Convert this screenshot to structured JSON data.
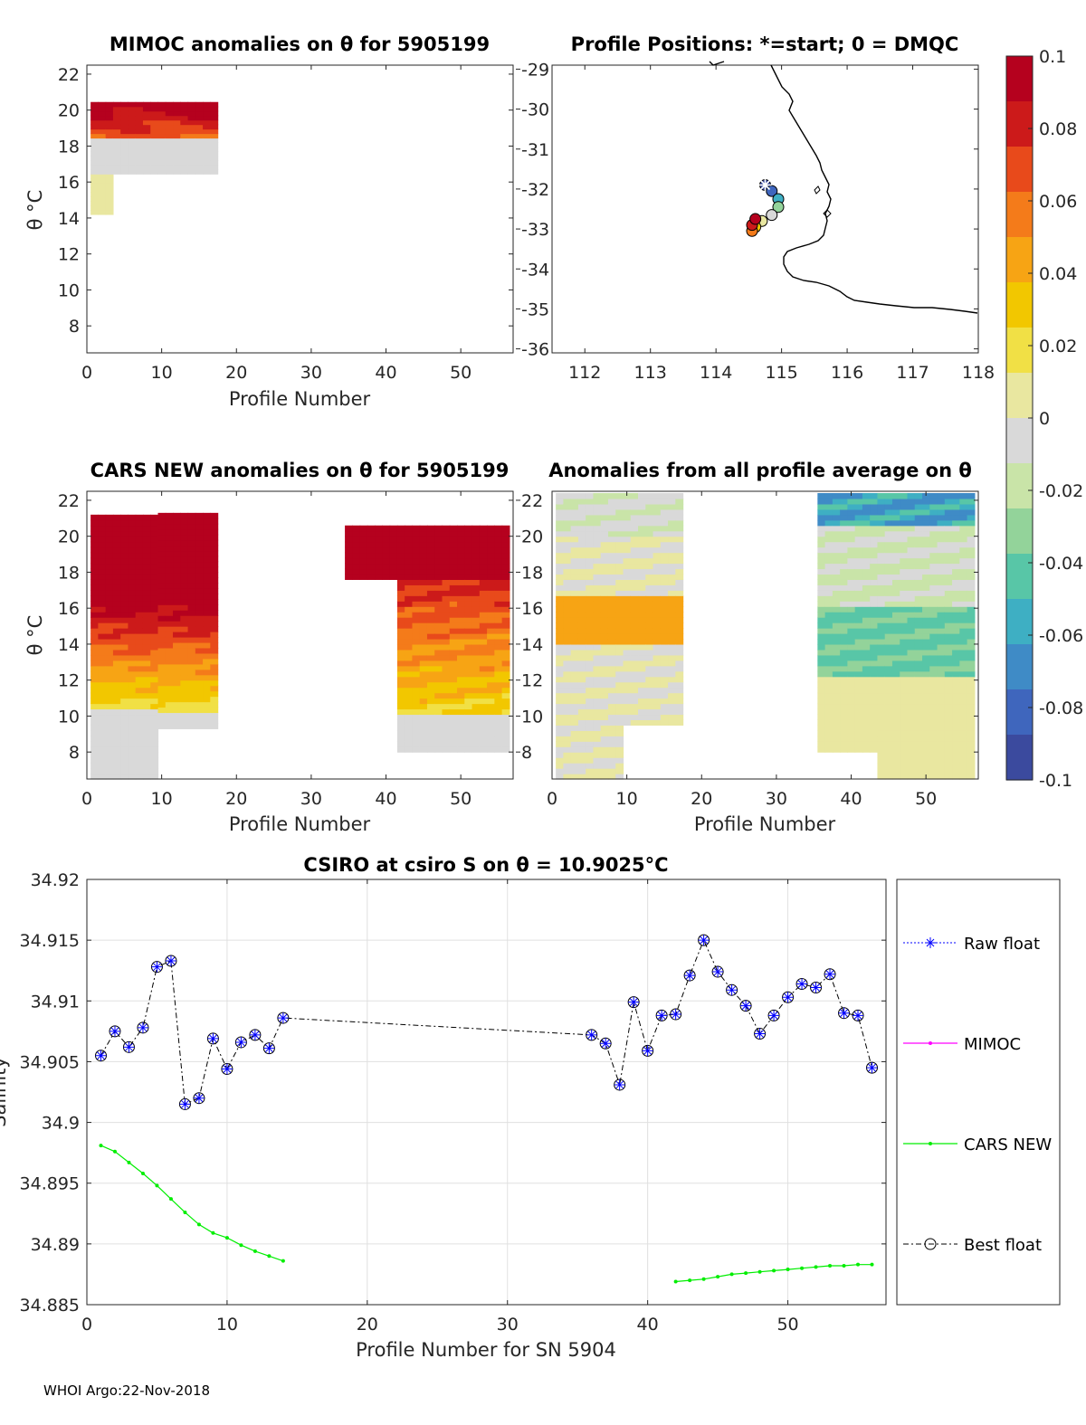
{
  "panels": {
    "mimoc": {
      "title": "MIMOC anomalies on θ  for 5905199",
      "ylabel": "θ °C",
      "xlabel": "Profile Number",
      "xticks": [
        "0",
        "10",
        "20",
        "30",
        "40",
        "50"
      ],
      "yticks": [
        "8",
        "10",
        "12",
        "14",
        "16",
        "18",
        "20",
        "22"
      ]
    },
    "map": {
      "title": "Profile Positions: *=start; 0 = DMQC",
      "xticks": [
        "112",
        "113",
        "114",
        "115",
        "116",
        "117",
        "118"
      ],
      "yticks": [
        "-29",
        "-30",
        "-31",
        "-32",
        "-33",
        "-34",
        "-35",
        "-36"
      ]
    },
    "cars": {
      "title": "CARS NEW anomalies on θ for 5905199",
      "ylabel": "θ °C",
      "xlabel": "Profile Number",
      "xticks": [
        "0",
        "10",
        "20",
        "30",
        "40",
        "50"
      ],
      "yticks": [
        "8",
        "10",
        "12",
        "14",
        "16",
        "18",
        "20",
        "22"
      ]
    },
    "allavg": {
      "title": "Anomalies from all profile average on θ",
      "xlabel": "Profile Number",
      "xticks": [
        "0",
        "10",
        "20",
        "30",
        "40",
        "50"
      ],
      "yticks": [
        "8",
        "10",
        "12",
        "14",
        "16",
        "18",
        "20",
        "22"
      ]
    },
    "colorbar": {
      "ticks": [
        "0.1",
        "0.08",
        "0.06",
        "0.04",
        "0.02",
        "0",
        "-0.02",
        "-0.04",
        "-0.06",
        "-0.08",
        "-0.1"
      ]
    }
  },
  "chart_data": [
    {
      "type": "heatmap",
      "title": "MIMOC anomalies on θ  for 5905199",
      "xlabel": "Profile Number",
      "ylabel": "θ °C",
      "xlim": [
        0,
        57
      ],
      "ylim": [
        6.5,
        22.5
      ],
      "color_range": [
        -0.1,
        0.1
      ],
      "description_of_field": "Warm anomalies (~0.06–0.1) above θ≈18.5 for profiles 1–17; near-zero to slightly negative (~-0.01) between θ 16.5–18; near-zero for profiles 1–3 down to θ≈14.3"
    },
    {
      "type": "scatter",
      "title": "Profile Positions: *=start; 0 = DMQC",
      "xlim": [
        111.5,
        118
      ],
      "ylim": [
        -36.1,
        -28.9
      ],
      "start": {
        "lon": 114.75,
        "lat": -31.9
      },
      "track": [
        {
          "lon": 114.75,
          "lat": -31.9
        },
        {
          "lon": 114.85,
          "lat": -32.05
        },
        {
          "lon": 114.95,
          "lat": -32.25
        },
        {
          "lon": 114.95,
          "lat": -32.45
        },
        {
          "lon": 114.85,
          "lat": -32.65
        },
        {
          "lon": 114.7,
          "lat": -32.8
        },
        {
          "lon": 114.6,
          "lat": -32.95
        },
        {
          "lon": 114.55,
          "lat": -33.05
        },
        {
          "lon": 114.55,
          "lat": -32.9
        },
        {
          "lon": 114.6,
          "lat": -32.75
        }
      ]
    },
    {
      "type": "heatmap",
      "title": "CARS NEW anomalies on θ for 5905199",
      "xlabel": "Profile Number",
      "ylabel": "θ °C",
      "xlim": [
        0,
        57
      ],
      "ylim": [
        6.5,
        22.5
      ],
      "color_range": [
        -0.1,
        0.1
      ],
      "description_of_field": "Strong positive anomalies (≥0.1) above θ≈16 for profiles 1–17 and above θ≈17.5 for profiles 35–56; decreasing to ~0 near θ≈10; slightly negative below θ 9.5"
    },
    {
      "type": "heatmap",
      "title": "Anomalies from all profile average on θ",
      "xlabel": "Profile Number",
      "xlim": [
        0,
        57
      ],
      "ylim": [
        6.5,
        22.5
      ],
      "color_range": [
        -0.1,
        0.1
      ],
      "description_of_field": "Profiles 1–17: positive (~0.05) band θ 14–16.5, near zero elsewhere; profiles 36–56: negative (~-0.03 to -0.06) band θ 12–16, near zero below θ 12"
    },
    {
      "type": "line",
      "title": "CSIRO at csiro S on θ = 10.9025°C",
      "xlabel": "Profile Number for SN 5904",
      "ylabel": "Salinity",
      "xlim": [
        0,
        57
      ],
      "ylim": [
        34.885,
        34.92
      ],
      "xticks": [
        "0",
        "10",
        "20",
        "30",
        "40",
        "50"
      ],
      "yticks": [
        "34.885",
        "34.89",
        "34.895",
        "34.9",
        "34.905",
        "34.91",
        "34.915",
        "34.92"
      ],
      "legend": [
        "Raw float",
        "MIMOC",
        "CARS NEW",
        "Best float"
      ],
      "series": [
        {
          "name": "Raw float",
          "color": "#0000ff",
          "x": [
            1,
            2,
            3,
            4,
            5,
            6,
            7,
            8,
            9,
            10,
            11,
            12,
            13,
            14,
            36,
            37,
            38,
            39,
            40,
            41,
            42,
            43,
            44,
            45,
            46,
            47,
            48,
            49,
            50,
            51,
            52,
            53,
            54,
            55,
            56
          ],
          "values": [
            34.9055,
            34.9075,
            34.9062,
            34.9078,
            34.9128,
            34.9133,
            34.9015,
            34.902,
            34.9069,
            34.9044,
            34.9066,
            34.9072,
            34.9061,
            34.9086,
            34.9072,
            34.9065,
            34.9031,
            34.9099,
            34.9059,
            34.9088,
            34.9089,
            34.9121,
            34.915,
            34.9124,
            34.9109,
            34.9096,
            34.9073,
            34.9088,
            34.9103,
            34.9114,
            34.9111,
            34.9122,
            34.909,
            34.9088,
            34.9045
          ]
        },
        {
          "name": "MIMOC",
          "color": "#ff00ff",
          "x": [],
          "values": []
        },
        {
          "name": "CARS NEW",
          "color": "#00ee00",
          "x": [
            1,
            2,
            3,
            4,
            5,
            6,
            7,
            8,
            9,
            10,
            11,
            12,
            13,
            14,
            42,
            43,
            44,
            45,
            46,
            47,
            48,
            49,
            50,
            51,
            52,
            53,
            54,
            55,
            56
          ],
          "values": [
            34.8981,
            34.8976,
            34.8967,
            34.8958,
            34.8948,
            34.8937,
            34.8926,
            34.8916,
            34.8909,
            34.8905,
            34.8899,
            34.8894,
            34.889,
            34.8886,
            34.8869,
            34.887,
            34.8871,
            34.8873,
            34.8875,
            34.8876,
            34.8877,
            34.8878,
            34.8879,
            34.888,
            34.8881,
            34.8882,
            34.8882,
            34.8883,
            34.8883
          ]
        },
        {
          "name": "Best float",
          "color": "#000000",
          "x": [
            1,
            2,
            3,
            4,
            5,
            6,
            7,
            8,
            9,
            10,
            11,
            12,
            13,
            14,
            36,
            37,
            38,
            39,
            40,
            41,
            42,
            43,
            44,
            45,
            46,
            47,
            48,
            49,
            50,
            51,
            52,
            53,
            54,
            55,
            56
          ],
          "values": [
            34.9055,
            34.9075,
            34.9062,
            34.9078,
            34.9128,
            34.9133,
            34.9015,
            34.902,
            34.9069,
            34.9044,
            34.9066,
            34.9072,
            34.9061,
            34.9086,
            34.9072,
            34.9065,
            34.9031,
            34.9099,
            34.9059,
            34.9088,
            34.9089,
            34.9121,
            34.915,
            34.9124,
            34.9109,
            34.9096,
            34.9073,
            34.9088,
            34.9103,
            34.9114,
            34.9111,
            34.9122,
            34.909,
            34.9088,
            34.9045
          ]
        }
      ]
    }
  ],
  "footer": "WHOI Argo:22-Nov-2018",
  "colormap": [
    "#3b4a9e",
    "#3f66bd",
    "#3f8bc6",
    "#3eafc3",
    "#58c6a7",
    "#93d39a",
    "#c9e4a8",
    "#d9d9d9",
    "#e9e7a0",
    "#f1e045",
    "#f2c700",
    "#f7a414",
    "#f47b1a",
    "#e84a1b",
    "#cc1a1a",
    "#b5011e"
  ]
}
